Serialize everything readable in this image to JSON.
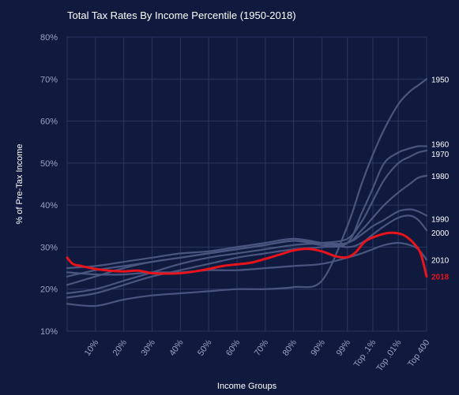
{
  "chart_data": {
    "type": "line",
    "title": "Total Tax Rates By Income Percentile (1950-2018)",
    "xlabel": "Income Groups",
    "ylabel": "% of Pre-Tax Income",
    "ylim": [
      10,
      80
    ],
    "yticks": [
      "10%",
      "20%",
      "30%",
      "40%",
      "50%",
      "60%",
      "70%",
      "80%"
    ],
    "yticks_values": [
      10,
      20,
      30,
      40,
      50,
      60,
      70,
      80
    ],
    "categories": [
      "10%",
      "20%",
      "30%",
      "40%",
      "50%",
      "60%",
      "70%",
      "80%",
      "90%",
      "99%",
      "Top .1%",
      "Top .01%",
      "Top 400"
    ],
    "x_range": [
      0,
      127
    ],
    "x_tick_positions": [
      10,
      20,
      30,
      40,
      50,
      60,
      70,
      80,
      90,
      99,
      108,
      117,
      127
    ],
    "grid": true,
    "legend": "direct labels at right end of each line",
    "colors": {
      "background": "#0f1a3e",
      "grid": "#2b3762",
      "series": "#4a5680",
      "highlight": "#e8141c"
    },
    "series": [
      {
        "name": "1950",
        "x": [
          0,
          10,
          20,
          30,
          40,
          50,
          60,
          70,
          80,
          90,
          99,
          104,
          108,
          112,
          117,
          121,
          124,
          127
        ],
        "values": [
          16.5,
          16,
          17.5,
          18.5,
          19,
          19.5,
          20,
          20,
          20.5,
          22,
          35,
          45,
          52,
          58,
          64,
          67,
          68.5,
          70
        ]
      },
      {
        "name": "1960",
        "x": [
          0,
          10,
          20,
          30,
          40,
          50,
          60,
          70,
          80,
          90,
          99,
          104,
          108,
          112,
          117,
          121,
          124,
          127
        ],
        "values": [
          18,
          19,
          21,
          23,
          24.5,
          26,
          27.5,
          28.5,
          29.5,
          30,
          31,
          38,
          44,
          50,
          52.5,
          53.5,
          54,
          54
        ]
      },
      {
        "name": "1970",
        "x": [
          0,
          10,
          20,
          30,
          40,
          50,
          60,
          70,
          80,
          90,
          99,
          104,
          108,
          112,
          117,
          121,
          124,
          127
        ],
        "values": [
          19,
          20,
          22,
          24,
          26,
          27.5,
          28.5,
          29.5,
          30.5,
          31,
          32,
          36,
          41,
          46,
          50,
          51.5,
          52.5,
          53
        ]
      },
      {
        "name": "1980",
        "x": [
          0,
          10,
          20,
          30,
          40,
          50,
          60,
          70,
          80,
          90,
          99,
          104,
          108,
          112,
          117,
          121,
          124,
          127
        ],
        "values": [
          21,
          23,
          25,
          26.5,
          27.5,
          28.5,
          29.5,
          30.5,
          31.5,
          31,
          31,
          34,
          37,
          40,
          43,
          45,
          46.5,
          47
        ]
      },
      {
        "name": "1990",
        "x": [
          0,
          10,
          20,
          30,
          40,
          50,
          60,
          70,
          80,
          90,
          99,
          104,
          108,
          112,
          117,
          121,
          124,
          127
        ],
        "values": [
          23,
          24.5,
          25.5,
          26.5,
          27.5,
          28.5,
          29.5,
          30.5,
          31.5,
          30.5,
          31,
          33,
          35,
          36.5,
          38.5,
          39,
          38.5,
          37.5
        ]
      },
      {
        "name": "2000",
        "x": [
          0,
          10,
          20,
          30,
          40,
          50,
          60,
          70,
          80,
          90,
          99,
          104,
          108,
          112,
          117,
          121,
          124,
          127
        ],
        "values": [
          25,
          25.5,
          26.5,
          27.5,
          28.5,
          29,
          30,
          31,
          32,
          31,
          30,
          31,
          33,
          35,
          37,
          37.5,
          36.5,
          34
        ]
      },
      {
        "name": "2010",
        "x": [
          0,
          10,
          20,
          30,
          40,
          50,
          60,
          70,
          80,
          90,
          99,
          104,
          108,
          112,
          117,
          121,
          124,
          127
        ],
        "values": [
          24,
          23.5,
          23.5,
          24,
          24,
          24.5,
          24.5,
          25,
          25.5,
          26,
          27.5,
          28.5,
          29.5,
          30.5,
          31,
          30.5,
          29.5,
          27
        ]
      },
      {
        "name": "2018",
        "highlight": true,
        "x": [
          0,
          2,
          5,
          10,
          15,
          20,
          25,
          30,
          35,
          40,
          45,
          50,
          55,
          60,
          65,
          70,
          75,
          80,
          85,
          90,
          95,
          99,
          102,
          105,
          108,
          112,
          115,
          118,
          120,
          123,
          125,
          127
        ],
        "values": [
          27.5,
          26,
          25.5,
          24.8,
          24.4,
          24.2,
          24.4,
          23.8,
          23.7,
          23.8,
          24.2,
          24.8,
          25.5,
          25.9,
          26.3,
          27.2,
          28.2,
          29.2,
          29.6,
          29,
          27.8,
          27.6,
          28.8,
          31.2,
          32.3,
          33.2,
          33.4,
          33.1,
          32.4,
          30.5,
          28.3,
          23
        ]
      }
    ]
  }
}
